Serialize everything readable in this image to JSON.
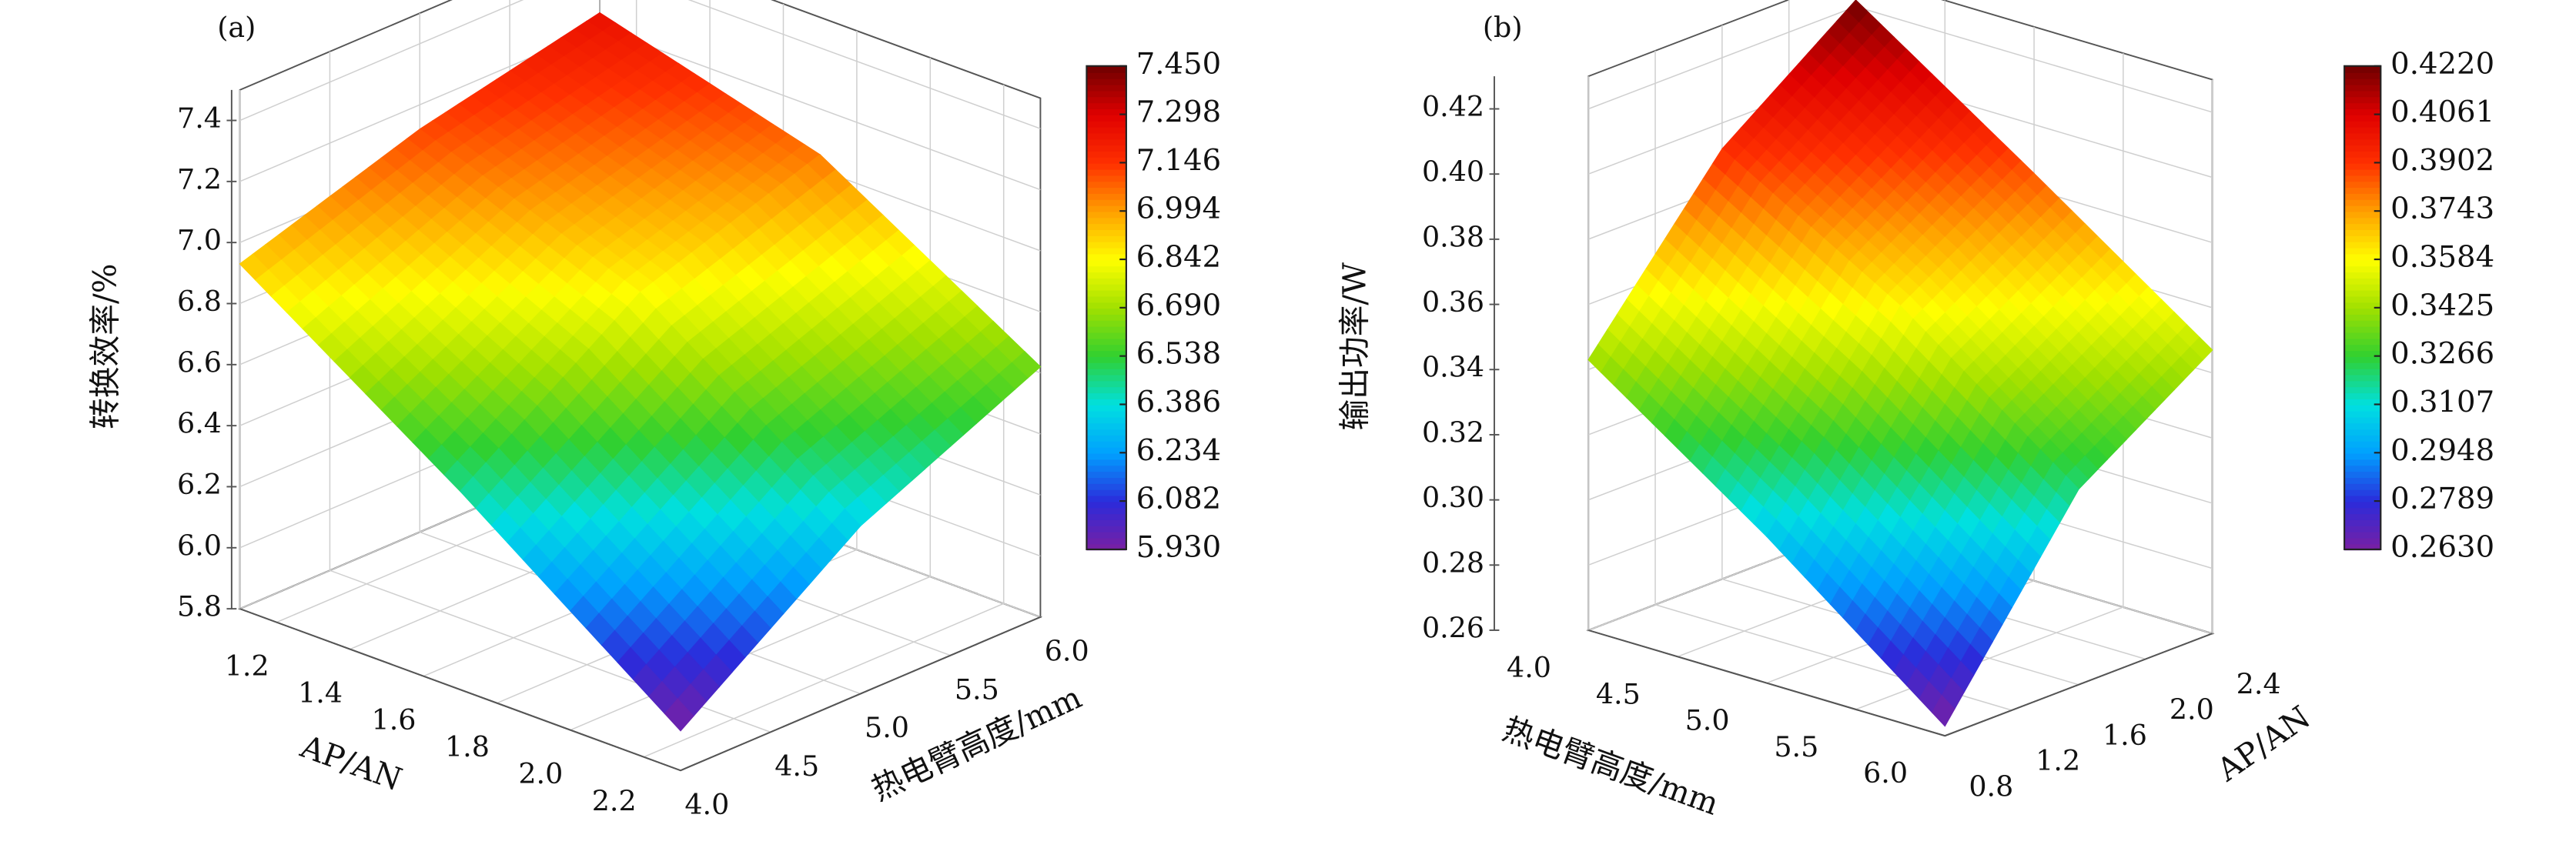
{
  "chart_data": [
    {
      "type": "surface",
      "title": "(a)",
      "xlabel": "AP/AN",
      "ylabel": "热电臂高度/mm",
      "zlabel": "转换效率/%",
      "x": [
        1.1,
        1.7,
        2.3
      ],
      "y": [
        4.0,
        5.0,
        6.0
      ],
      "z": [
        [
          6.93,
          7.12,
          7.25
        ],
        [
          6.45,
          6.85,
          7.05
        ],
        [
          5.93,
          6.35,
          6.62
        ]
      ],
      "xlim": [
        1.1,
        2.3
      ],
      "ylim": [
        4.0,
        6.0
      ],
      "zlim": [
        5.8,
        7.5
      ],
      "xticks": [
        1.2,
        1.4,
        1.6,
        1.8,
        {
          "value": 2.0,
          "label": "2.0"
        },
        2.2
      ],
      "yticks": [
        {
          "value": 4.0,
          "label": "4.0"
        },
        4.5,
        {
          "value": 5.0,
          "label": "5.0"
        },
        5.5,
        {
          "value": 6.0,
          "label": "6.0"
        }
      ],
      "zticks": [
        5.8,
        {
          "value": 6.0,
          "label": "6.0"
        },
        6.2,
        6.4,
        6.6,
        6.8,
        {
          "value": 7.0,
          "label": "7.0"
        },
        7.2,
        7.4
      ],
      "colorscale": [
        "#7a1fa2",
        "#2b2bdb",
        "#00a0ff",
        "#00e0e0",
        "#30d030",
        "#a0e000",
        "#ffff00",
        "#ffa000",
        "#ff3000",
        "#e00000",
        "#700000"
      ],
      "clim": [
        5.93,
        7.45
      ],
      "cticks": [
        {
          "value": 5.93,
          "label": "5.930"
        },
        6.082,
        6.234,
        6.386,
        6.538,
        {
          "value": 6.69,
          "label": "6.690"
        },
        6.842,
        6.994,
        7.146,
        7.298,
        {
          "value": 7.45,
          "label": "7.450"
        }
      ]
    },
    {
      "type": "surface",
      "title": "(b)",
      "xlabel": "热电臂高度/mm",
      "ylabel": "AP/AN",
      "zlabel": "输出功率/W",
      "x": [
        4.0,
        5.0,
        6.0
      ],
      "y": [
        0.8,
        1.6,
        2.4
      ],
      "z": [
        [
          0.343,
          0.392,
          0.422
        ],
        [
          0.305,
          0.36,
          0.385
        ],
        [
          0.263,
          0.32,
          0.347
        ]
      ],
      "xlim": [
        4.0,
        6.0
      ],
      "ylim": [
        0.8,
        2.4
      ],
      "zlim": [
        0.26,
        0.43
      ],
      "xticks": [
        {
          "value": 4.0,
          "label": "4.0"
        },
        4.5,
        {
          "value": 5.0,
          "label": "5.0"
        },
        5.5,
        {
          "value": 6.0,
          "label": "6.0"
        }
      ],
      "yticks": [
        0.8,
        1.2,
        1.6,
        {
          "value": 2.0,
          "label": "2.0"
        },
        2.4
      ],
      "zticks": [
        0.26,
        0.28,
        {
          "value": 0.3,
          "label": "0.30"
        },
        0.32,
        0.34,
        0.36,
        0.38,
        {
          "value": 0.4,
          "label": "0.40"
        },
        0.42
      ],
      "colorscale": [
        "#7a1fa2",
        "#2b2bdb",
        "#00a0ff",
        "#00e0e0",
        "#30d030",
        "#a0e000",
        "#ffff00",
        "#ffa000",
        "#ff3000",
        "#e00000",
        "#700000"
      ],
      "clim": [
        0.263,
        0.422
      ],
      "cticks": [
        {
          "value": 0.263,
          "label": "0.2630"
        },
        0.2789,
        0.2948,
        0.3107,
        0.3266,
        0.3425,
        0.3584,
        0.3743,
        0.3902,
        0.4061,
        {
          "value": 0.422,
          "label": "0.4220"
        }
      ]
    }
  ]
}
